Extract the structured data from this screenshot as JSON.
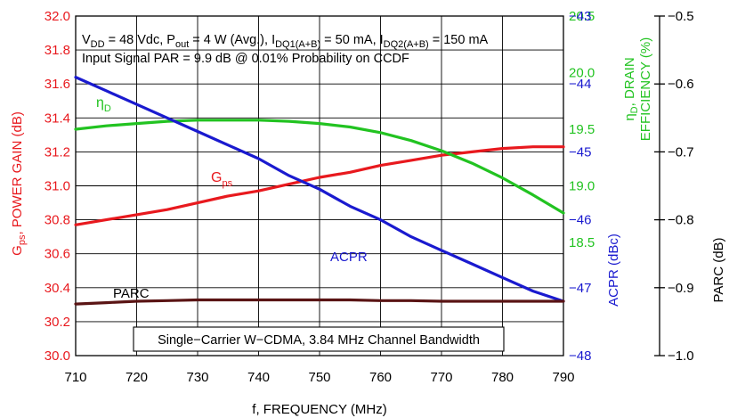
{
  "chart_data": {
    "type": "line",
    "x": [
      710,
      715,
      720,
      725,
      730,
      735,
      740,
      745,
      750,
      755,
      760,
      765,
      770,
      775,
      780,
      785,
      790
    ],
    "xlabel": "f, FREQUENCY (MHz)",
    "xlim": [
      710,
      790
    ],
    "x_ticks": [
      "710",
      "720",
      "730",
      "740",
      "750",
      "760",
      "770",
      "780",
      "790"
    ],
    "axes": {
      "gain": {
        "label_main": "G",
        "label_sub": "ps",
        "label_rest": ", POWER GAIN (dB)",
        "ylim": [
          30.0,
          32.0
        ],
        "ticks": [
          "30.0",
          "30.2",
          "30.4",
          "30.6",
          "30.8",
          "31.0",
          "31.2",
          "31.4",
          "31.6",
          "31.8",
          "32.0"
        ],
        "color": "#e8191e"
      },
      "efficiency": {
        "label_line1_main": "η",
        "label_line1_sub": "D",
        "label_line1_rest": ", DRAIN",
        "label_line2": "EFFICIENCY (%)",
        "ylim": [
          17.5,
          20.5
        ],
        "ticks": [
          "18.5",
          "19.0",
          "19.5",
          "20.0",
          "20.5"
        ],
        "color": "#22c321"
      },
      "acpr": {
        "label": "ACPR (dBc)",
        "ylim": [
          -48,
          -43
        ],
        "ticks": [
          "−43",
          "−44",
          "−45",
          "−46",
          "−47",
          "−48"
        ],
        "color": "#1a1acf"
      },
      "parc": {
        "label": "PARC (dB)",
        "ylim": [
          -1.0,
          -0.5
        ],
        "ticks": [
          "−0.5",
          "−0.6",
          "−0.7",
          "−0.8",
          "−0.9",
          "−1.0"
        ],
        "color": "#000000"
      }
    },
    "series": [
      {
        "name_main": "G",
        "name_sub": "ps",
        "axis": "gain",
        "color": "#e8191e",
        "values": [
          30.77,
          30.8,
          30.83,
          30.86,
          30.9,
          30.94,
          30.97,
          31.01,
          31.05,
          31.08,
          31.12,
          31.15,
          31.18,
          31.2,
          31.22,
          31.23,
          31.23
        ]
      },
      {
        "name_main": "η",
        "name_sub": "D",
        "axis": "efficiency",
        "color": "#22c321",
        "values": [
          19.5,
          19.53,
          19.55,
          19.57,
          19.58,
          19.58,
          19.58,
          19.57,
          19.55,
          19.52,
          19.47,
          19.4,
          19.31,
          19.2,
          19.07,
          18.92,
          18.76
        ]
      },
      {
        "name": "ACPR",
        "axis": "acpr",
        "color": "#1a1acf",
        "values": [
          -43.9,
          -44.1,
          -44.3,
          -44.5,
          -44.7,
          -44.9,
          -45.1,
          -45.35,
          -45.55,
          -45.8,
          -46.0,
          -46.25,
          -46.45,
          -46.65,
          -46.85,
          -47.05,
          -47.2
        ]
      },
      {
        "name": "PARC",
        "axis": "parc",
        "color": "#5a1414",
        "values": [
          -0.924,
          -0.922,
          -0.92,
          -0.919,
          -0.918,
          -0.918,
          -0.918,
          -0.918,
          -0.918,
          -0.918,
          -0.919,
          -0.919,
          -0.92,
          -0.92,
          -0.92,
          -0.92,
          -0.92
        ]
      }
    ],
    "annotations": {
      "conditions_line1": [
        {
          "t": "V"
        },
        {
          "t": "DD",
          "sub": true
        },
        {
          "t": " = 48 Vdc, P"
        },
        {
          "t": "out",
          "sub": true
        },
        {
          "t": " = 4 W (Avg.), I"
        },
        {
          "t": "DQ1(A+B)",
          "sub": true
        },
        {
          "t": " = 50 mA, I"
        },
        {
          "t": "DQ2(A+B)",
          "sub": true
        },
        {
          "t": " = 150 mA"
        }
      ],
      "conditions_line2": "Input Signal PAR = 9.9 dB @ 0.01% Probability on CCDF",
      "signal_note": "Single−Carrier W−CDMA, 3.84 MHz Channel Bandwidth"
    }
  }
}
